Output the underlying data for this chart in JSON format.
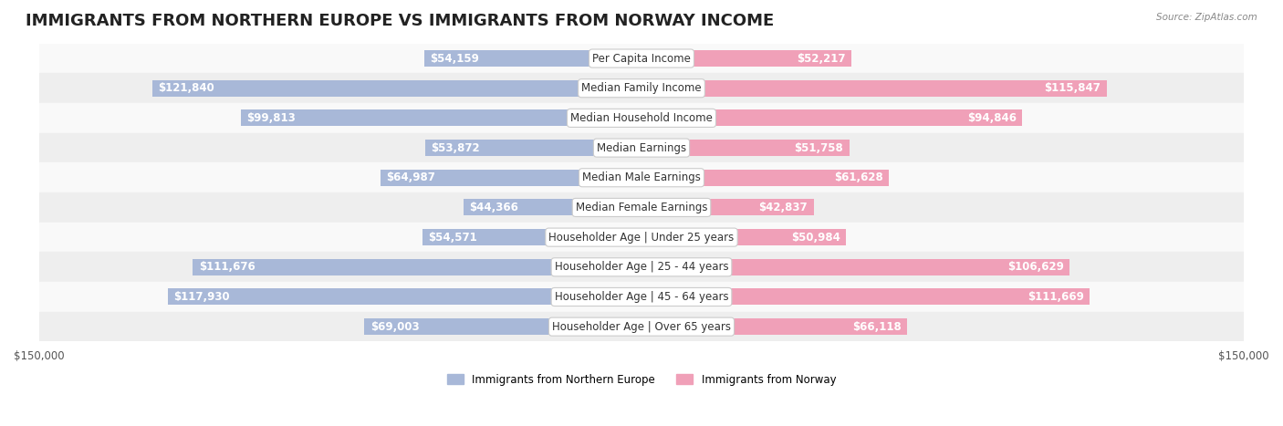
{
  "title": "IMMIGRANTS FROM NORTHERN EUROPE VS IMMIGRANTS FROM NORWAY INCOME",
  "source": "Source: ZipAtlas.com",
  "categories": [
    "Per Capita Income",
    "Median Family Income",
    "Median Household Income",
    "Median Earnings",
    "Median Male Earnings",
    "Median Female Earnings",
    "Householder Age | Under 25 years",
    "Householder Age | 25 - 44 years",
    "Householder Age | 45 - 64 years",
    "Householder Age | Over 65 years"
  ],
  "left_values": [
    54159,
    121840,
    99813,
    53872,
    64987,
    44366,
    54571,
    111676,
    117930,
    69003
  ],
  "right_values": [
    52217,
    115847,
    94846,
    51758,
    61628,
    42837,
    50984,
    106629,
    111669,
    66118
  ],
  "left_labels": [
    "$54,159",
    "$121,840",
    "$99,813",
    "$53,872",
    "$64,987",
    "$44,366",
    "$54,571",
    "$111,676",
    "$117,930",
    "$69,003"
  ],
  "right_labels": [
    "$52,217",
    "$115,847",
    "$94,846",
    "$51,758",
    "$61,628",
    "$42,837",
    "$50,984",
    "$106,629",
    "$111,669",
    "$66,118"
  ],
  "left_color": "#a8b8d8",
  "right_color": "#f0a0b8",
  "left_color_legend": "#7b9fd4",
  "right_color_legend": "#f080a0",
  "left_solid_color": "#6e93cc",
  "right_solid_color": "#e8698a",
  "max_value": 150000,
  "bar_height": 0.55,
  "background_color": "#f5f5f5",
  "row_bg_light": "#f9f9f9",
  "row_bg_dark": "#eeeeee",
  "legend_left": "Immigrants from Northern Europe",
  "legend_right": "Immigrants from Norway",
  "title_fontsize": 13,
  "label_fontsize": 8.5,
  "category_fontsize": 8.5,
  "axis_fontsize": 8.5
}
